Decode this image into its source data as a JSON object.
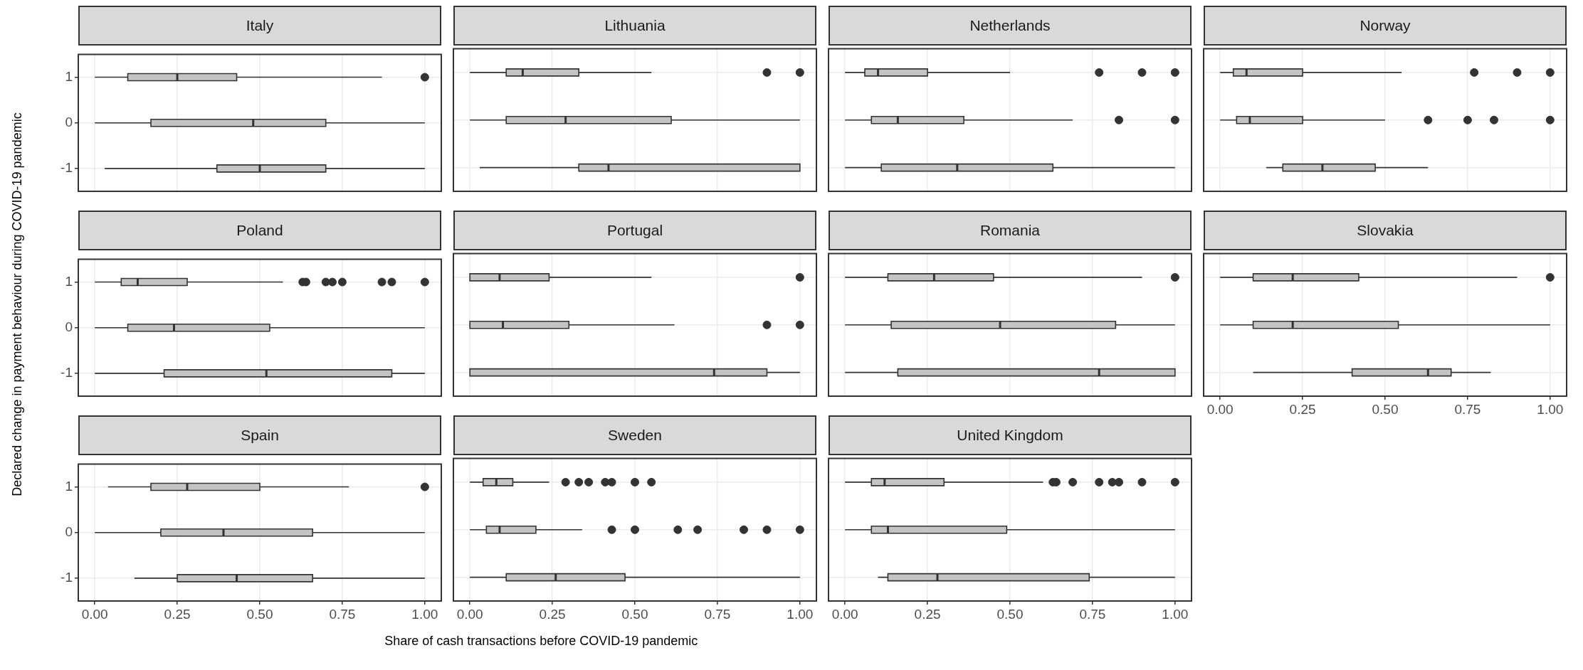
{
  "chart_data": [
    {
      "type": "box",
      "orientation": "horizontal",
      "title": "Italy",
      "categories": [
        "1",
        "0",
        "-1"
      ],
      "tick_labels": "y",
      "xlim": [
        -0.05,
        1.05
      ],
      "xticks": [
        0,
        0.25,
        0.5,
        0.75,
        1
      ],
      "grid": true,
      "boxes": [
        {
          "low": 0,
          "q1": 0.1,
          "median": 0.25,
          "q3": 0.43,
          "high": 0.87,
          "outliers": [
            1
          ]
        },
        {
          "low": 0,
          "q1": 0.17,
          "median": 0.48,
          "q3": 0.7,
          "high": 1
        },
        {
          "low": 0.03,
          "q1": 0.37,
          "median": 0.5,
          "q3": 0.7,
          "high": 1
        }
      ]
    },
    {
      "type": "box",
      "orientation": "horizontal",
      "title": "Lithuania",
      "categories": [
        "1",
        "0",
        "-1"
      ],
      "tick_labels": false,
      "xlim": [
        -0.05,
        1.05
      ],
      "xticks": [
        0,
        0.25,
        0.5,
        0.75,
        1
      ],
      "grid": true,
      "boxes": [
        {
          "low": 0,
          "q1": 0.11,
          "median": 0.16,
          "q3": 0.33,
          "high": 0.55,
          "outliers": [
            0.9,
            1
          ]
        },
        {
          "low": 0,
          "q1": 0.11,
          "median": 0.29,
          "q3": 0.61,
          "high": 1
        },
        {
          "low": 0.03,
          "q1": 0.33,
          "median": 0.42,
          "q3": 1,
          "high": 1
        }
      ]
    },
    {
      "type": "box",
      "orientation": "horizontal",
      "title": "Netherlands",
      "categories": [
        "1",
        "0",
        "-1"
      ],
      "tick_labels": false,
      "xlim": [
        -0.05,
        1.05
      ],
      "xticks": [
        0,
        0.25,
        0.5,
        0.75,
        1
      ],
      "grid": true,
      "boxes": [
        {
          "low": 0,
          "q1": 0.06,
          "median": 0.1,
          "q3": 0.25,
          "high": 0.5,
          "outliers": [
            0.77,
            0.9,
            1
          ]
        },
        {
          "low": 0,
          "q1": 0.08,
          "median": 0.16,
          "q3": 0.36,
          "high": 0.69,
          "outliers": [
            0.83,
            1
          ]
        },
        {
          "low": 0,
          "q1": 0.11,
          "median": 0.34,
          "q3": 0.63,
          "high": 1
        }
      ]
    },
    {
      "type": "box",
      "orientation": "horizontal",
      "title": "Norway",
      "categories": [
        "1",
        "0",
        "-1"
      ],
      "tick_labels": false,
      "xlim": [
        -0.05,
        1.05
      ],
      "xticks": [
        0,
        0.25,
        0.5,
        0.75,
        1
      ],
      "grid": true,
      "boxes": [
        {
          "low": 0,
          "q1": 0.04,
          "median": 0.08,
          "q3": 0.25,
          "high": 0.55,
          "outliers": [
            0.77,
            0.9,
            1
          ]
        },
        {
          "low": 0,
          "q1": 0.05,
          "median": 0.09,
          "q3": 0.25,
          "high": 0.5,
          "outliers": [
            0.63,
            0.75,
            0.83,
            1
          ]
        },
        {
          "low": 0.14,
          "q1": 0.19,
          "median": 0.31,
          "q3": 0.47,
          "high": 0.63
        }
      ]
    },
    {
      "type": "box",
      "orientation": "horizontal",
      "title": "Poland",
      "categories": [
        "1",
        "0",
        "-1"
      ],
      "tick_labels": "y",
      "ylabel": "Declared change in payment behaviour during COVID-19 pandemic",
      "xlim": [
        -0.05,
        1.05
      ],
      "xticks": [
        0,
        0.25,
        0.5,
        0.75,
        1
      ],
      "grid": true,
      "boxes": [
        {
          "low": 0,
          "q1": 0.08,
          "median": 0.13,
          "q3": 0.28,
          "high": 0.57,
          "outliers": [
            0.63,
            0.64,
            0.7,
            0.72,
            0.75,
            0.87,
            0.9,
            1
          ]
        },
        {
          "low": 0,
          "q1": 0.1,
          "median": 0.24,
          "q3": 0.53,
          "high": 1
        },
        {
          "low": 0,
          "q1": 0.21,
          "median": 0.52,
          "q3": 0.9,
          "high": 1
        }
      ]
    },
    {
      "type": "box",
      "orientation": "horizontal",
      "title": "Portugal",
      "categories": [
        "1",
        "0",
        "-1"
      ],
      "tick_labels": false,
      "xlim": [
        -0.05,
        1.05
      ],
      "xticks": [
        0,
        0.25,
        0.5,
        0.75,
        1
      ],
      "grid": true,
      "boxes": [
        {
          "low": 0,
          "q1": 0,
          "median": 0.09,
          "q3": 0.24,
          "high": 0.55,
          "outliers": [
            1
          ]
        },
        {
          "low": 0,
          "q1": 0,
          "median": 0.1,
          "q3": 0.3,
          "high": 0.62,
          "outliers": [
            0.9,
            1
          ]
        },
        {
          "low": 0,
          "q1": 0,
          "median": 0.74,
          "q3": 0.9,
          "high": 1
        }
      ]
    },
    {
      "type": "box",
      "orientation": "horizontal",
      "title": "Romania",
      "categories": [
        "1",
        "0",
        "-1"
      ],
      "tick_labels": false,
      "xlim": [
        -0.05,
        1.05
      ],
      "xticks": [
        0,
        0.25,
        0.5,
        0.75,
        1
      ],
      "grid": true,
      "boxes": [
        {
          "low": 0,
          "q1": 0.13,
          "median": 0.27,
          "q3": 0.45,
          "high": 0.9,
          "outliers": [
            1
          ]
        },
        {
          "low": 0,
          "q1": 0.14,
          "median": 0.47,
          "q3": 0.82,
          "high": 1
        },
        {
          "low": 0,
          "q1": 0.16,
          "median": 0.77,
          "q3": 1,
          "high": 1
        }
      ]
    },
    {
      "type": "box",
      "orientation": "horizontal",
      "title": "Slovakia",
      "categories": [
        "1",
        "0",
        "-1"
      ],
      "tick_labels": "x",
      "xlim": [
        -0.05,
        1.05
      ],
      "xticks": [
        {
          "value": 0,
          "label": "0.00"
        },
        {
          "value": 0.25,
          "label": "0.25"
        },
        {
          "value": 0.5,
          "label": "0.50"
        },
        {
          "value": 0.75,
          "label": "0.75"
        },
        {
          "value": 1,
          "label": "1.00"
        }
      ],
      "grid": true,
      "boxes": [
        {
          "low": 0,
          "q1": 0.1,
          "median": 0.22,
          "q3": 0.42,
          "high": 0.9,
          "outliers": [
            1
          ]
        },
        {
          "low": 0,
          "q1": 0.1,
          "median": 0.22,
          "q3": 0.54,
          "high": 1
        },
        {
          "low": 0.1,
          "q1": 0.4,
          "median": 0.63,
          "q3": 0.7,
          "high": 0.82
        }
      ]
    },
    {
      "type": "box",
      "orientation": "horizontal",
      "title": "Spain",
      "categories": [
        "1",
        "0",
        "-1"
      ],
      "xlim": [
        -0.05,
        1.05
      ],
      "xticks": [
        {
          "value": 0,
          "label": "0.00"
        },
        {
          "value": 0.25,
          "label": "0.25"
        },
        {
          "value": 0.5,
          "label": "0.50"
        },
        {
          "value": 0.75,
          "label": "0.75"
        },
        {
          "value": 1,
          "label": "1.00"
        }
      ],
      "grid": true,
      "boxes": [
        {
          "low": 0.04,
          "q1": 0.17,
          "median": 0.28,
          "q3": 0.5,
          "high": 0.77,
          "outliers": [
            1
          ]
        },
        {
          "low": 0,
          "q1": 0.2,
          "median": 0.39,
          "q3": 0.66,
          "high": 1
        },
        {
          "low": 0.12,
          "q1": 0.25,
          "median": 0.43,
          "q3": 0.66,
          "high": 1
        }
      ]
    },
    {
      "type": "box",
      "orientation": "horizontal",
      "title": "Sweden",
      "categories": [
        "1",
        "0",
        "-1"
      ],
      "tick_labels": "x",
      "xlabel": "Share of cash transactions before COVID-19 pandemic",
      "xlim": [
        -0.05,
        1.05
      ],
      "xticks": [
        {
          "value": 0,
          "label": "0.00"
        },
        {
          "value": 0.25,
          "label": "0.25"
        },
        {
          "value": 0.5,
          "label": "0.50"
        },
        {
          "value": 0.75,
          "label": "0.75"
        },
        {
          "value": 1,
          "label": "1.00"
        }
      ],
      "grid": true,
      "boxes": [
        {
          "low": 0,
          "q1": 0.04,
          "median": 0.08,
          "q3": 0.13,
          "high": 0.24,
          "outliers": [
            0.29,
            0.33,
            0.36,
            0.41,
            0.43,
            0.5,
            0.55
          ]
        },
        {
          "low": 0,
          "q1": 0.05,
          "median": 0.09,
          "q3": 0.2,
          "high": 0.34,
          "outliers": [
            0.43,
            0.5,
            0.63,
            0.69,
            0.83,
            0.9,
            1
          ]
        },
        {
          "low": 0,
          "q1": 0.11,
          "median": 0.26,
          "q3": 0.47,
          "high": 1
        }
      ]
    },
    {
      "type": "box",
      "orientation": "horizontal",
      "title": "United Kingdom",
      "categories": [
        "1",
        "0",
        "-1"
      ],
      "tick_labels": "x",
      "xlim": [
        -0.05,
        1.05
      ],
      "xticks": [
        {
          "value": 0,
          "label": "0.00"
        },
        {
          "value": 0.25,
          "label": "0.25"
        },
        {
          "value": 0.5,
          "label": "0.50"
        },
        {
          "value": 0.75,
          "label": "0.75"
        },
        {
          "value": 1,
          "label": "1.00"
        }
      ],
      "grid": true,
      "boxes": [
        {
          "low": 0,
          "q1": 0.08,
          "median": 0.12,
          "q3": 0.3,
          "high": 0.6,
          "outliers": [
            0.63,
            0.64,
            0.69,
            0.77,
            0.81,
            0.83,
            0.9,
            1
          ]
        },
        {
          "low": 0,
          "q1": 0.08,
          "median": 0.13,
          "q3": 0.49,
          "high": 1
        },
        {
          "low": 0.1,
          "q1": 0.13,
          "median": 0.28,
          "q3": 0.74,
          "high": 1
        }
      ]
    }
  ]
}
